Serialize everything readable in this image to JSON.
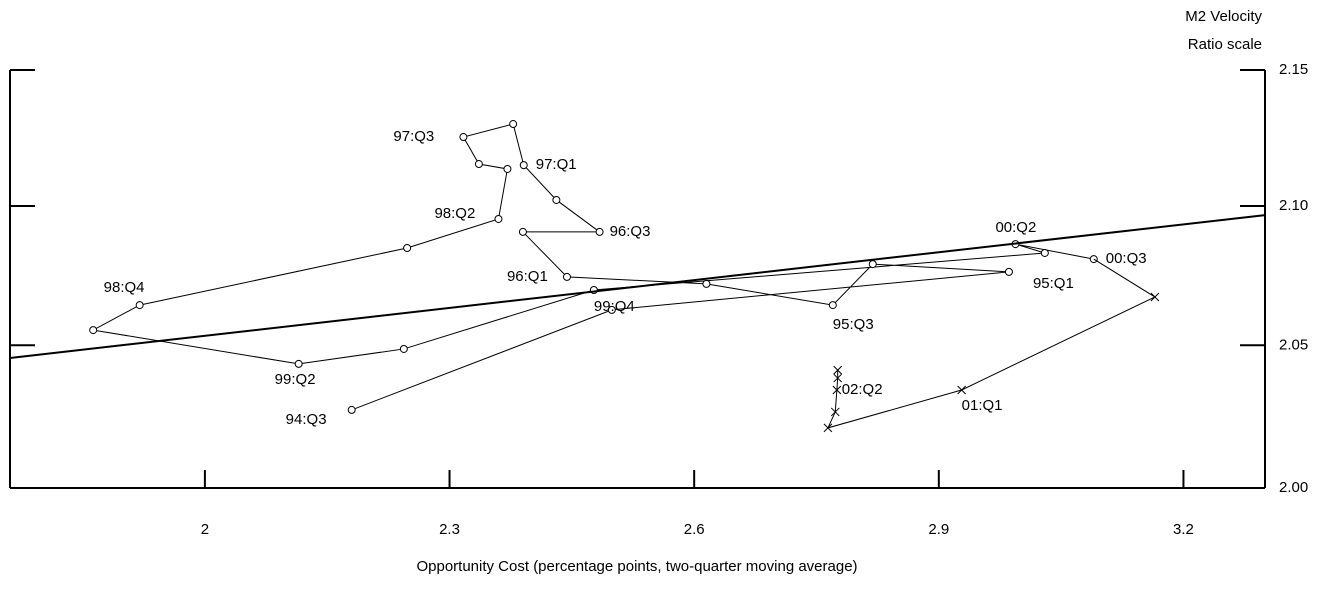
{
  "chart_data": {
    "type": "line",
    "y_axis_title": [
      "M2 Velocity",
      "Ratio scale"
    ],
    "x_axis_title": "Opportunity Cost (percentage points, two-quarter moving average)",
    "xlim": [
      1.761,
      3.3
    ],
    "xticks": [
      2,
      2.3,
      2.6,
      2.9,
      3.2
    ],
    "ylim": [
      2.0,
      2.15
    ],
    "yticks": [
      {
        "value": 2.0,
        "label": "2.00"
      },
      2.05,
      {
        "value": 2.1,
        "label": "2.10"
      },
      2.15
    ],
    "y_scale": "log",
    "y_axis_side": "right",
    "color": "#000000",
    "series": [
      {
        "marker": "circle",
        "x": [
          2.18,
          2.499,
          2.986,
          2.819,
          2.77,
          2.615,
          2.444,
          2.39,
          2.484,
          2.431,
          2.391,
          2.378,
          2.317,
          2.336,
          2.371,
          2.36,
          2.248,
          1.92,
          1.863,
          2.115,
          2.244,
          2.477,
          3.03,
          2.994,
          3.09
        ],
        "values": [
          2.0272,
          2.0626,
          2.0762,
          2.079,
          2.0643,
          2.0719,
          2.0744,
          2.0906,
          2.0906,
          2.1022,
          2.1149,
          2.13,
          2.1252,
          2.1153,
          2.1135,
          2.0953,
          2.0848,
          2.0643,
          2.0554,
          2.0434,
          2.0487,
          2.0697,
          2.083,
          2.0862,
          2.0808
        ],
        "point_labels": [
          "94:Q3",
          null,
          "95:Q1",
          null,
          "95:Q3",
          null,
          "96:Q1",
          null,
          "96:Q3",
          null,
          "97:Q1",
          null,
          "97:Q3",
          null,
          null,
          "98:Q2",
          null,
          "98:Q4",
          null,
          "99:Q2",
          null,
          "99:Q4",
          null,
          "00:Q2",
          "00:Q3"
        ]
      },
      {
        "marker": "x",
        "x": [
          3.165,
          2.928,
          2.764,
          2.773,
          2.775,
          2.776,
          2.776
        ],
        "values": [
          2.0672,
          2.0342,
          2.0209,
          2.0265,
          2.0342,
          2.0384,
          2.0412
        ],
        "point_labels": [
          null,
          "01:Q1",
          null,
          null,
          null,
          null,
          "02:Q2"
        ]
      },
      {
        "marker": "none",
        "width": 2,
        "x": [
          1.761,
          3.3
        ],
        "values": [
          2.0455,
          2.0967
        ]
      }
    ]
  }
}
